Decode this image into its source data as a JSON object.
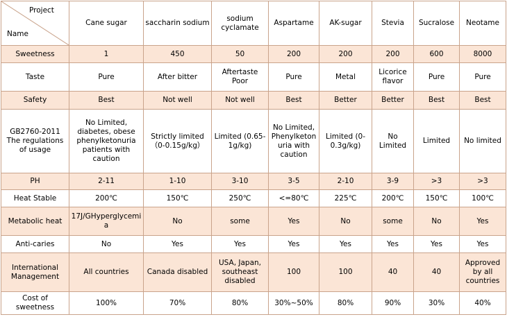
{
  "corner": {
    "top_right": "Project",
    "bottom_left": "Name"
  },
  "columns": [
    "Cane sugar",
    "saccharin sodium",
    "sodium cyclamate",
    "Aspartame",
    "AK-sugar",
    "Stevia",
    "Sucralose",
    "Neotame"
  ],
  "rows": [
    {
      "label": "Sweetness",
      "values": [
        "1",
        "450",
        "50",
        "200",
        "200",
        "200",
        "600",
        "8000"
      ]
    },
    {
      "label": "Taste",
      "values": [
        "Pure",
        "After bitter",
        "Aftertaste Poor",
        "Pure",
        "Metal",
        "Licorice flavor",
        "Pure",
        "Pure"
      ]
    },
    {
      "label": "Safety",
      "values": [
        "Best",
        "Not well",
        "Not well",
        "Best",
        "Better",
        "Better",
        "Best",
        "Best"
      ]
    },
    {
      "label": "GB2760-2011 The regulations of usage",
      "values": [
        "No Limited, diabetes, obese phenylketonuria patients with caution",
        "Strictly limited （0-0.15g/kg）",
        "Limited (0.65-1g/kg)",
        "No Limited, Phenylketonuria with caution",
        "Limited (0-0.3g/kg)",
        "No Limited",
        "Limited",
        "No limited"
      ]
    },
    {
      "label": "PH",
      "values": [
        "2-11",
        "1-10",
        "3-10",
        "3-5",
        "2-10",
        "3-9",
        ">3",
        ">3"
      ]
    },
    {
      "label": "Heat Stable",
      "values": [
        "200℃",
        "150℃",
        "250℃",
        "<=80℃",
        "225℃",
        "200℃",
        "150℃",
        "100℃"
      ]
    },
    {
      "label": "Metabolic heat",
      "values": [
        "17J/GHyperglycemia",
        "No",
        "some",
        "Yes",
        "No",
        "some",
        "No",
        "Yes"
      ]
    },
    {
      "label": "Anti-caries",
      "values": [
        "No",
        "Yes",
        "Yes",
        "Yes",
        "Yes",
        "Yes",
        "Yes",
        "Yes"
      ]
    },
    {
      "label": "International Management",
      "values": [
        "All countries",
        "Canada disabled",
        "USA, Japan, southeast disabled",
        "100",
        "100",
        "40",
        "40",
        "Approved by all countries"
      ]
    },
    {
      "label": "Cost of sweetness",
      "values": [
        "100%",
        "70%",
        "80%",
        "30%~50%",
        "80%",
        "90%",
        "30%",
        "40%"
      ]
    }
  ],
  "colors": {
    "border": "#c9a38b",
    "shaded_row": "#fbe5d6",
    "plain_row": "#ffffff"
  }
}
